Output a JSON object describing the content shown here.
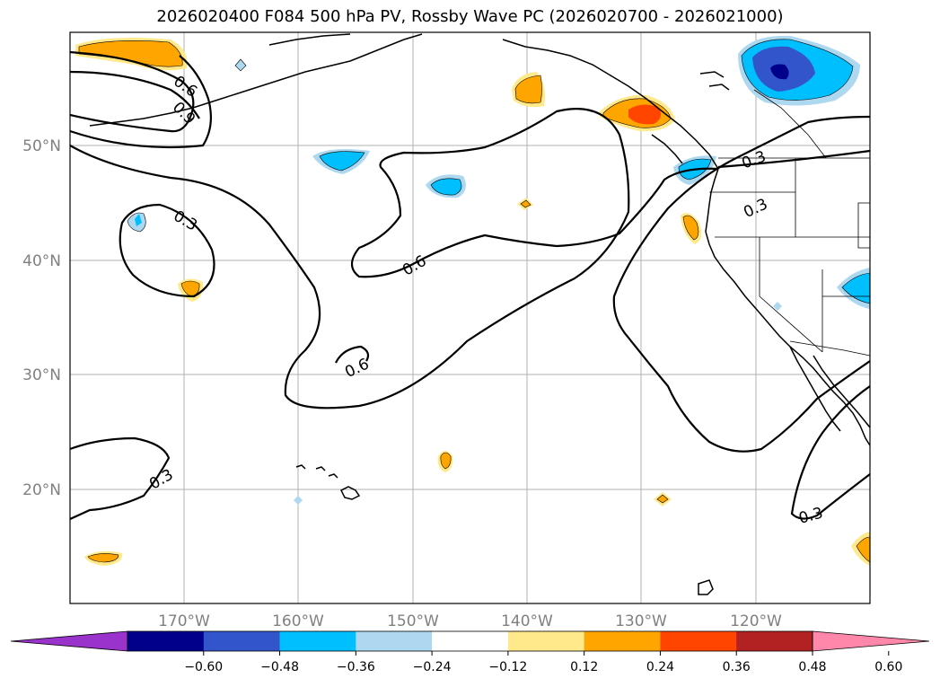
{
  "title": "2026020400 F084 500 hPa PV, Rossby Wave PC (2026020700 - 2026021000)",
  "map": {
    "lon_range": [
      -180,
      -110
    ],
    "lat_range": [
      10,
      60
    ],
    "lat_labels": [
      "50°N",
      "40°N",
      "30°N",
      "20°N"
    ],
    "lon_labels": [
      "170°W",
      "160°W",
      "150°W",
      "140°W",
      "130°W",
      "120°W"
    ],
    "contour_labels": [
      "0.6",
      "0.9",
      "0.3",
      "0.6",
      "0.6",
      "0.3",
      "0.3",
      "0.3",
      "0.3"
    ]
  },
  "colorbar": {
    "colors": [
      "#9933cc",
      "#00008b",
      "#3355cc",
      "#00bfff",
      "#add8f0",
      "#ffffff",
      "#ffe98a",
      "#ffa500",
      "#ff4500",
      "#b22222",
      "#ff88aa"
    ],
    "tick_labels": [
      "−0.60",
      "−0.48",
      "−0.36",
      "−0.24",
      "−0.12",
      "0.12",
      "0.24",
      "0.36",
      "0.48",
      "0.60"
    ]
  },
  "palette": {
    "orange": "#ffa500",
    "light_yellow": "#ffe98a",
    "red_orange": "#ff4500",
    "deep_sky_blue": "#00bfff",
    "light_blue": "#add8f0",
    "royal_blue": "#3355cc",
    "dark_navy": "#00008b",
    "grid": "#b0b0b0",
    "contour": "#000000"
  }
}
